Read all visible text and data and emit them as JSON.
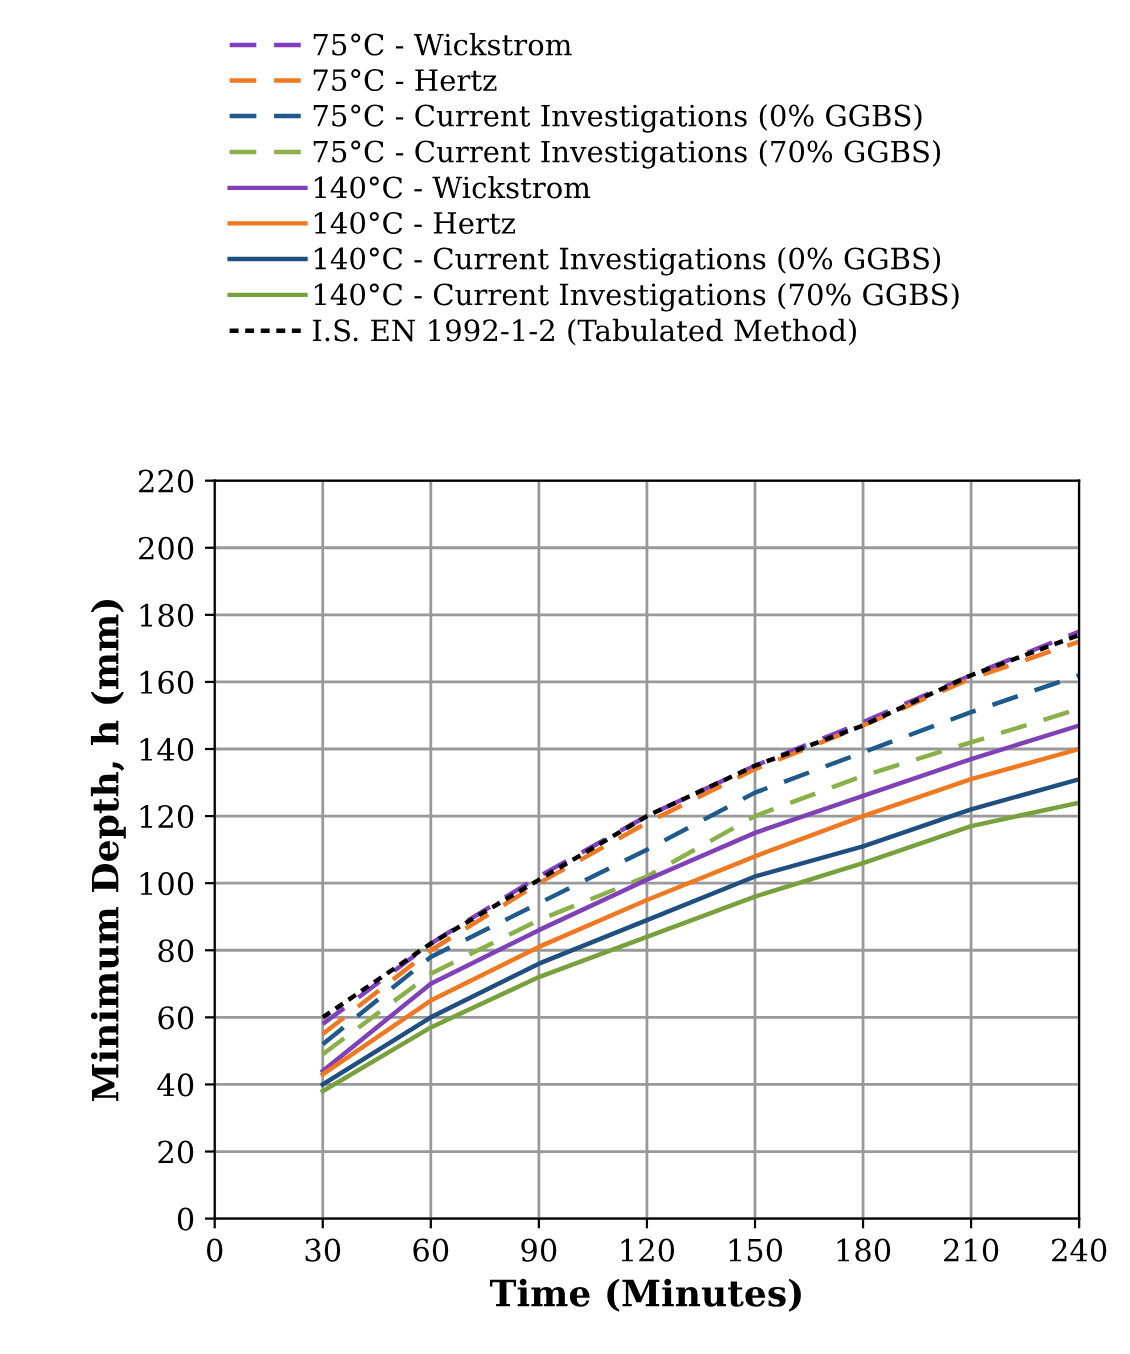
{
  "chart_data": {
    "type": "line",
    "xlabel": "Time (Minutes)",
    "ylabel": "Minimum Depth, h (mm)",
    "x": [
      30,
      60,
      90,
      120,
      150,
      180,
      210,
      240
    ],
    "xlim": [
      0,
      240
    ],
    "xticks": [
      0,
      30,
      60,
      90,
      120,
      150,
      180,
      210,
      240
    ],
    "ylim": [
      0,
      220
    ],
    "yticks": [
      0,
      20,
      40,
      60,
      80,
      100,
      120,
      140,
      160,
      180,
      200,
      220
    ],
    "grid": true,
    "legend": "top",
    "series": [
      {
        "name": "75°C - Wickstrom",
        "color": "#7f3fbf",
        "line_style": "dashed",
        "values": [
          58,
          82,
          102,
          120,
          135,
          148,
          162,
          175
        ]
      },
      {
        "name": "75°C - Hertz",
        "color": "#f07820",
        "line_style": "dashed",
        "values": [
          55,
          80,
          100,
          118,
          134,
          147,
          161,
          172
        ]
      },
      {
        "name": "75°C - Current Investigations (0% GGBS)",
        "color": "#1f5a8c",
        "line_style": "dashed",
        "values": [
          52,
          78,
          94,
          110,
          127,
          139,
          151,
          162
        ]
      },
      {
        "name": "75°C - Current Investigations (70% GGBS)",
        "color": "#8ab04a",
        "line_style": "dashed",
        "values": [
          49,
          73,
          89,
          102,
          120,
          132,
          142,
          152
        ]
      },
      {
        "name": "140°C - Wickstrom",
        "color": "#8040b8",
        "line_style": "solid",
        "values": [
          44,
          70,
          86,
          101,
          115,
          126,
          137,
          147
        ]
      },
      {
        "name": "140°C - Hertz",
        "color": "#f07820",
        "line_style": "solid",
        "values": [
          43,
          65,
          81,
          95,
          108,
          120,
          131,
          140
        ]
      },
      {
        "name": "140°C - Current Investigations (0% GGBS)",
        "color": "#1f4e80",
        "line_style": "solid",
        "values": [
          40,
          60,
          76,
          89,
          102,
          111,
          122,
          131
        ]
      },
      {
        "name": "140°C - Current Investigations (70% GGBS)",
        "color": "#78a03c",
        "line_style": "solid",
        "values": [
          38,
          57,
          72,
          84,
          96,
          106,
          117,
          124
        ]
      },
      {
        "name": "I.S. EN 1992-1-2 (Tabulated Method)",
        "color": "#000000",
        "line_style": "dotted",
        "values": [
          60,
          82,
          101,
          120,
          135,
          147,
          162,
          174
        ]
      }
    ]
  }
}
